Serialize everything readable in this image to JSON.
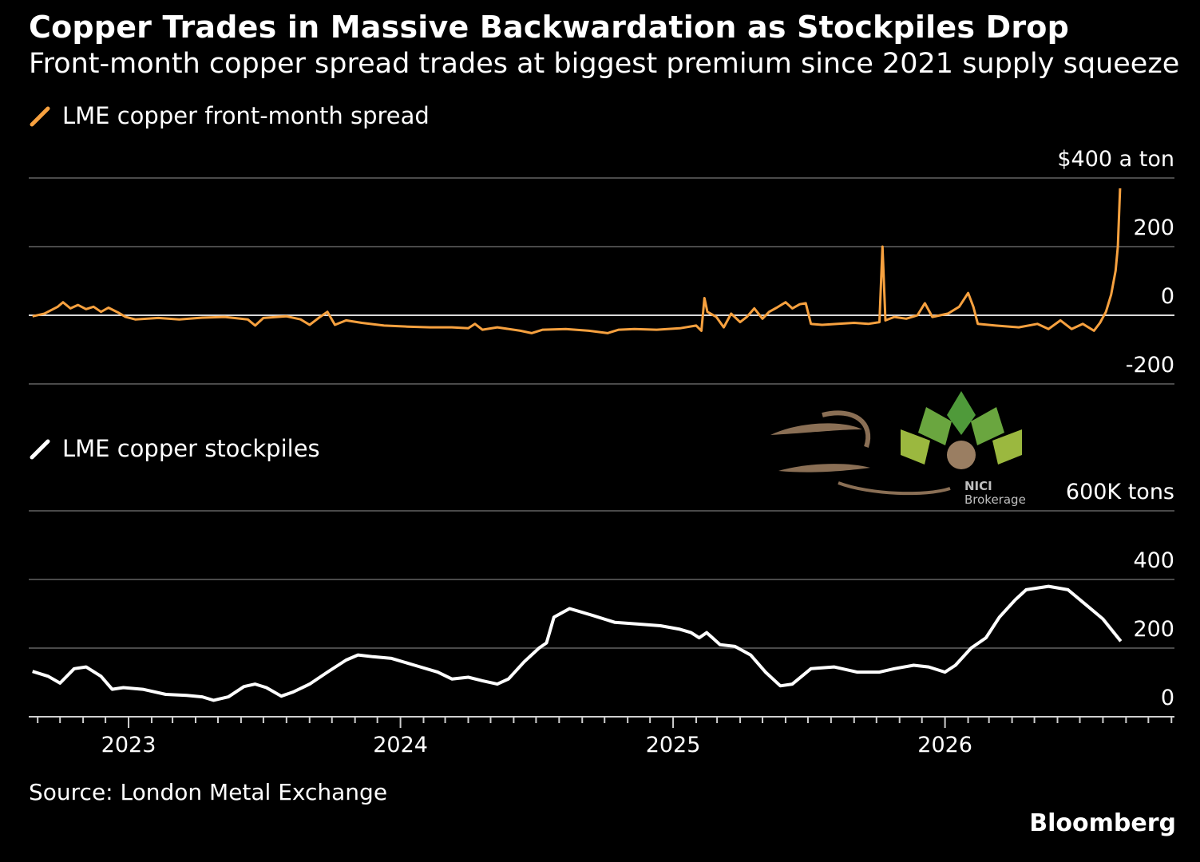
{
  "header": {
    "title": "Copper Trades in Massive Backwardation as Stockpiles Drop",
    "subtitle": "Front-month copper spread trades at biggest premium since 2021 supply squeeze"
  },
  "footer": {
    "source": "Source: London Metal Exchange",
    "brand": "Bloomberg"
  },
  "watermark": {
    "name": "NICI",
    "tagline": "Brokerage"
  },
  "colors": {
    "background": "#000000",
    "spread_line": "#f7a13f",
    "stock_line": "#ffffff",
    "grid": "#4a4a4a"
  },
  "chart_data": [
    {
      "type": "line",
      "legend": "LME copper front-month spread",
      "unit_label": "$400 a ton",
      "ylim": [
        -200,
        400
      ],
      "yticks": [
        "400",
        "200",
        "0",
        "-200"
      ],
      "xlim": [
        "2022-08-20",
        "2026-11-05"
      ],
      "series": [
        {
          "name": "LME copper front-month spread",
          "points": [
            [
              "2022-08-25",
              -3
            ],
            [
              "2022-09-10",
              5
            ],
            [
              "2022-09-28",
              25
            ],
            [
              "2022-10-05",
              38
            ],
            [
              "2022-10-15",
              20
            ],
            [
              "2022-10-25",
              30
            ],
            [
              "2022-11-05",
              18
            ],
            [
              "2022-11-15",
              25
            ],
            [
              "2022-11-25",
              10
            ],
            [
              "2022-12-05",
              22
            ],
            [
              "2022-12-18",
              8
            ],
            [
              "2022-12-28",
              -5
            ],
            [
              "2023-01-10",
              -12
            ],
            [
              "2023-02-10",
              -8
            ],
            [
              "2023-03-10",
              -12
            ],
            [
              "2023-04-10",
              -7
            ],
            [
              "2023-05-10",
              -5
            ],
            [
              "2023-06-10",
              -12
            ],
            [
              "2023-06-20",
              -30
            ],
            [
              "2023-07-01",
              -8
            ],
            [
              "2023-08-01",
              -3
            ],
            [
              "2023-08-20",
              -12
            ],
            [
              "2023-09-01",
              -28
            ],
            [
              "2023-09-15",
              -5
            ],
            [
              "2023-09-25",
              10
            ],
            [
              "2023-10-05",
              -28
            ],
            [
              "2023-10-20",
              -15
            ],
            [
              "2023-11-10",
              -22
            ],
            [
              "2023-12-10",
              -30
            ],
            [
              "2024-01-10",
              -33
            ],
            [
              "2024-02-10",
              -35
            ],
            [
              "2024-03-10",
              -35
            ],
            [
              "2024-04-01",
              -38
            ],
            [
              "2024-04-10",
              -25
            ],
            [
              "2024-04-20",
              -42
            ],
            [
              "2024-05-10",
              -35
            ],
            [
              "2024-06-10",
              -45
            ],
            [
              "2024-06-25",
              -52
            ],
            [
              "2024-07-10",
              -42
            ],
            [
              "2024-08-10",
              -40
            ],
            [
              "2024-09-10",
              -45
            ],
            [
              "2024-10-05",
              -52
            ],
            [
              "2024-10-20",
              -42
            ],
            [
              "2024-11-10",
              -40
            ],
            [
              "2024-12-10",
              -42
            ],
            [
              "2025-01-10",
              -38
            ],
            [
              "2025-02-01",
              -30
            ],
            [
              "2025-02-08",
              -45
            ],
            [
              "2025-02-12",
              50
            ],
            [
              "2025-02-16",
              10
            ],
            [
              "2025-02-28",
              -5
            ],
            [
              "2025-03-10",
              -35
            ],
            [
              "2025-03-20",
              5
            ],
            [
              "2025-04-01",
              -20
            ],
            [
              "2025-04-10",
              -5
            ],
            [
              "2025-04-20",
              20
            ],
            [
              "2025-05-01",
              -10
            ],
            [
              "2025-05-10",
              10
            ],
            [
              "2025-05-20",
              22
            ],
            [
              "2025-06-01",
              38
            ],
            [
              "2025-06-10",
              20
            ],
            [
              "2025-06-20",
              32
            ],
            [
              "2025-06-28",
              35
            ],
            [
              "2025-07-05",
              -25
            ],
            [
              "2025-07-20",
              -28
            ],
            [
              "2025-08-10",
              -25
            ],
            [
              "2025-09-01",
              -22
            ],
            [
              "2025-09-20",
              -25
            ],
            [
              "2025-10-05",
              -20
            ],
            [
              "2025-10-09",
              200
            ],
            [
              "2025-10-13",
              -15
            ],
            [
              "2025-10-25",
              -5
            ],
            [
              "2025-11-10",
              -10
            ],
            [
              "2025-11-25",
              0
            ],
            [
              "2025-12-05",
              35
            ],
            [
              "2025-12-15",
              -5
            ],
            [
              "2026-01-05",
              5
            ],
            [
              "2026-01-20",
              25
            ],
            [
              "2026-02-01",
              65
            ],
            [
              "2026-02-08",
              25
            ],
            [
              "2026-02-14",
              -25
            ],
            [
              "2026-03-10",
              -30
            ],
            [
              "2026-04-10",
              -35
            ],
            [
              "2026-05-05",
              -25
            ],
            [
              "2026-05-20",
              -40
            ],
            [
              "2026-06-05",
              -15
            ],
            [
              "2026-06-20",
              -40
            ],
            [
              "2026-07-05",
              -25
            ],
            [
              "2026-07-20",
              -45
            ],
            [
              "2026-07-28",
              -22
            ],
            [
              "2026-08-05",
              10
            ],
            [
              "2026-08-12",
              60
            ],
            [
              "2026-08-18",
              130
            ],
            [
              "2026-08-21",
              200
            ],
            [
              "2026-08-24",
              370
            ]
          ]
        }
      ]
    },
    {
      "type": "line",
      "legend": "LME copper stockpiles",
      "unit_label": "600K tons",
      "ylim": [
        0,
        600
      ],
      "yticks": [
        "400",
        "200",
        "0"
      ],
      "xlim": [
        "2022-08-20",
        "2026-11-05"
      ],
      "xticks": [
        "2023",
        "2024",
        "2025",
        "2026"
      ],
      "series": [
        {
          "name": "LME copper stockpiles",
          "points": [
            [
              "2022-08-25",
              132
            ],
            [
              "2022-09-15",
              118
            ],
            [
              "2022-10-01",
              98
            ],
            [
              "2022-10-20",
              140
            ],
            [
              "2022-11-05",
              145
            ],
            [
              "2022-11-25",
              118
            ],
            [
              "2022-12-10",
              80
            ],
            [
              "2022-12-25",
              85
            ],
            [
              "2023-01-20",
              80
            ],
            [
              "2023-02-20",
              65
            ],
            [
              "2023-03-20",
              62
            ],
            [
              "2023-04-10",
              58
            ],
            [
              "2023-04-25",
              48
            ],
            [
              "2023-05-15",
              58
            ],
            [
              "2023-06-05",
              88
            ],
            [
              "2023-06-20",
              95
            ],
            [
              "2023-07-05",
              85
            ],
            [
              "2023-07-25",
              60
            ],
            [
              "2023-08-10",
              72
            ],
            [
              "2023-09-01",
              95
            ],
            [
              "2023-09-25",
              130
            ],
            [
              "2023-10-20",
              165
            ],
            [
              "2023-11-05",
              180
            ],
            [
              "2023-11-25",
              175
            ],
            [
              "2023-12-20",
              170
            ],
            [
              "2024-01-20",
              150
            ],
            [
              "2024-02-20",
              130
            ],
            [
              "2024-03-10",
              110
            ],
            [
              "2024-04-01",
              115
            ],
            [
              "2024-04-20",
              105
            ],
            [
              "2024-05-10",
              95
            ],
            [
              "2024-05-25",
              110
            ],
            [
              "2024-06-15",
              160
            ],
            [
              "2024-07-05",
              200
            ],
            [
              "2024-07-15",
              215
            ],
            [
              "2024-07-25",
              290
            ],
            [
              "2024-08-15",
              315
            ],
            [
              "2024-09-15",
              295
            ],
            [
              "2024-10-15",
              275
            ],
            [
              "2024-11-15",
              270
            ],
            [
              "2024-12-15",
              265
            ],
            [
              "2025-01-10",
              255
            ],
            [
              "2025-01-25",
              245
            ],
            [
              "2025-02-05",
              230
            ],
            [
              "2025-02-15",
              245
            ],
            [
              "2025-03-05",
              210
            ],
            [
              "2025-03-25",
              205
            ],
            [
              "2025-04-15",
              180
            ],
            [
              "2025-05-05",
              130
            ],
            [
              "2025-05-25",
              90
            ],
            [
              "2025-06-10",
              95
            ],
            [
              "2025-07-05",
              140
            ],
            [
              "2025-08-05",
              145
            ],
            [
              "2025-09-05",
              130
            ],
            [
              "2025-10-05",
              130
            ],
            [
              "2025-10-25",
              140
            ],
            [
              "2025-11-20",
              150
            ],
            [
              "2025-12-10",
              145
            ],
            [
              "2026-01-01",
              130
            ],
            [
              "2026-01-15",
              150
            ],
            [
              "2026-02-05",
              200
            ],
            [
              "2026-02-25",
              230
            ],
            [
              "2026-03-15",
              290
            ],
            [
              "2026-04-05",
              340
            ],
            [
              "2026-04-20",
              370
            ],
            [
              "2026-05-20",
              380
            ],
            [
              "2026-06-15",
              370
            ],
            [
              "2026-07-10",
              325
            ],
            [
              "2026-08-01",
              285
            ],
            [
              "2026-08-25",
              220
            ]
          ]
        }
      ]
    }
  ]
}
